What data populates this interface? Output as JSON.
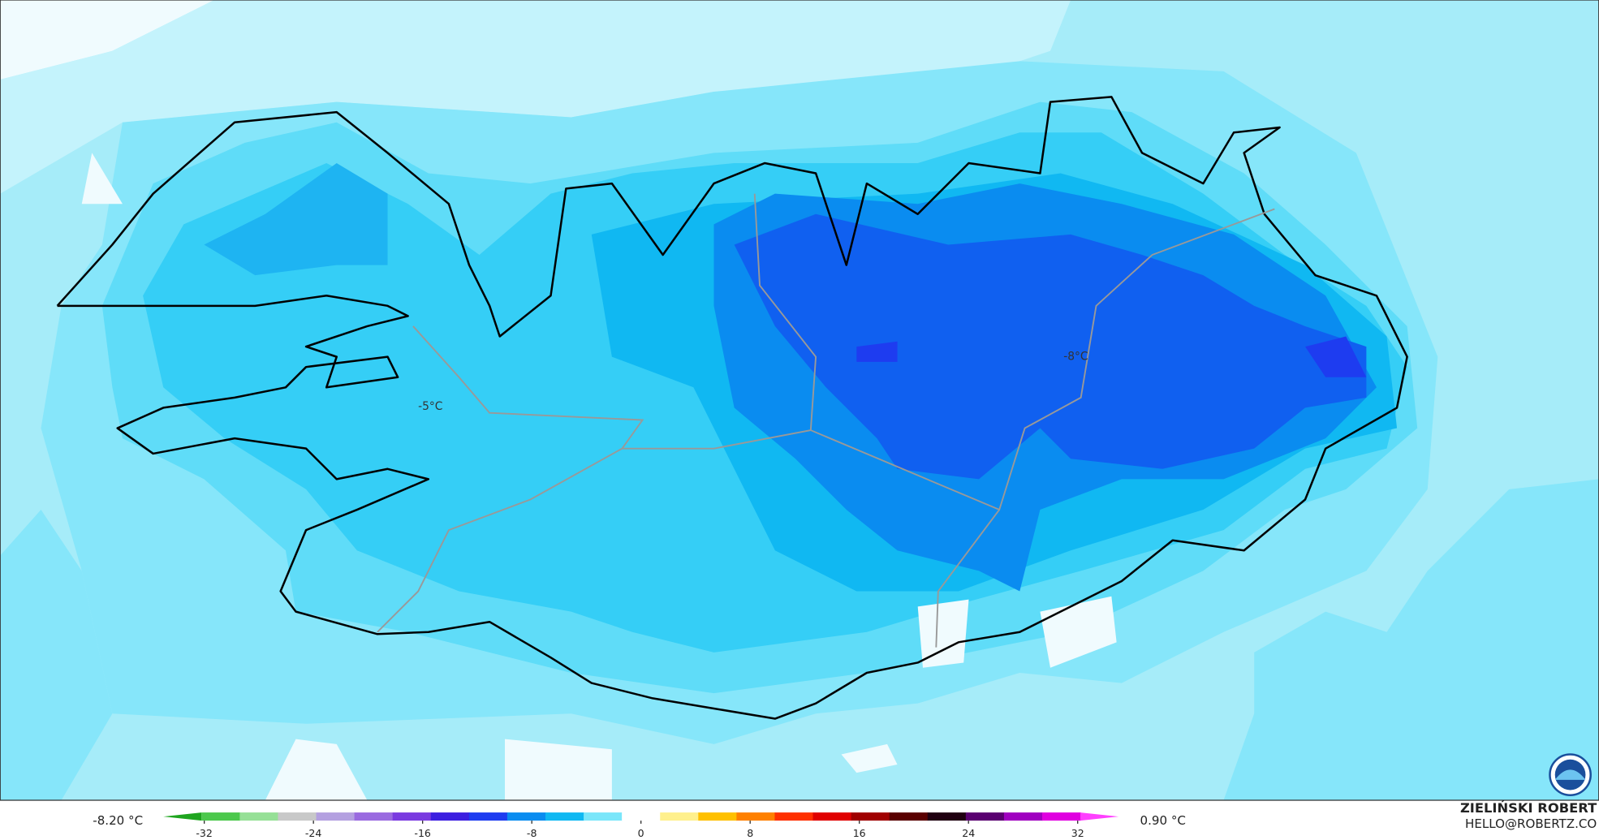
{
  "map": {
    "contour_labels": [
      "-5°C",
      "-8°C"
    ]
  },
  "colorbar": {
    "lim": [
      -35,
      35
    ],
    "ticks": [
      -32,
      -24,
      -16,
      -8,
      0,
      8,
      16,
      24,
      32
    ],
    "colors": [
      "#1fa51f",
      "#4cc84c",
      "#96e096",
      "#c8c8c8",
      "#b4a0e0",
      "#9a6ae0",
      "#7a3ae0",
      "#3c1ee0",
      "#1e3cf0",
      "#0a8cf0",
      "#10b8f2",
      "#7ae6fa",
      "#ffffff",
      "#fff08c",
      "#ffc000",
      "#ff8000",
      "#ff3000",
      "#e00000",
      "#a00000",
      "#5a0000",
      "#200010",
      "#5a0070",
      "#a000c0",
      "#e000e0",
      "#ff40ff"
    ],
    "min_label": "-8.20 °C",
    "max_label": "0.90 °C"
  },
  "credit": {
    "name": "ZIELIŃSKI ROBERT",
    "email": "HELLO@ROBERTZ.CO"
  }
}
